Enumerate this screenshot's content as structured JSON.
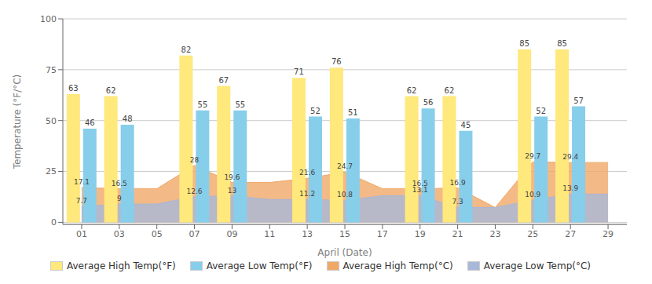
{
  "chart_data": {
    "type": "bar",
    "xlabel": "April (Date)",
    "ylabel": "Temperature (°F/°C)",
    "x": [
      1,
      3,
      5,
      7,
      9,
      11,
      13,
      15,
      17,
      19,
      21,
      23,
      25,
      27,
      29
    ],
    "series": [
      {
        "name": "Average High Temp(°F)",
        "type": "bar",
        "color": "#FFE87C",
        "data_labels": true,
        "values": [
          63,
          62,
          null,
          82,
          67,
          null,
          71,
          76,
          null,
          62,
          62,
          null,
          85,
          85,
          null
        ]
      },
      {
        "name": "Average Low Temp(°F)",
        "type": "bar",
        "color": "#87CEEB",
        "data_labels": true,
        "values": [
          46,
          48,
          null,
          55,
          55,
          null,
          52,
          51,
          null,
          56,
          45,
          null,
          52,
          57,
          null
        ]
      },
      {
        "name": "Average High Temp(°C)",
        "type": "area",
        "color": "#F0A868",
        "data_labels": true,
        "values": [
          17.1,
          16.5,
          16.5,
          28,
          19.6,
          19.6,
          21.6,
          24.7,
          16.5,
          16.5,
          16.9,
          7.3,
          29.7,
          29.4,
          29.4
        ],
        "value_labels": [
          "17.1",
          "16.5",
          null,
          "28",
          "19.6",
          null,
          "21.6",
          "24.7",
          null,
          "16.5",
          "16.9",
          null,
          "29.7",
          "29.4",
          null
        ]
      },
      {
        "name": "Average Low Temp(°C)",
        "type": "area",
        "color": "#A8B8D8",
        "data_labels": true,
        "values": [
          7.7,
          9,
          9,
          12.6,
          13,
          11.2,
          11.2,
          10.8,
          13.1,
          13.1,
          7.3,
          7.3,
          10.9,
          13.9,
          13.9
        ],
        "value_labels": [
          "7.7",
          "9",
          null,
          "12.6",
          "13",
          null,
          "11.2",
          "10.8",
          null,
          "13.1",
          "7.3",
          null,
          "10.9",
          "13.9",
          null
        ]
      }
    ],
    "xlim": [
      0,
      30
    ],
    "xticks": [
      {
        "value": 1,
        "label": "01"
      },
      {
        "value": 3,
        "label": "03"
      },
      {
        "value": 5,
        "label": "05"
      },
      {
        "value": 7,
        "label": "07"
      },
      {
        "value": 9,
        "label": "09"
      },
      11,
      13,
      15,
      17,
      19,
      21,
      23,
      25,
      27,
      29
    ],
    "ylim": [
      -1,
      100
    ],
    "yticks": [
      0,
      25,
      50,
      75,
      100
    ],
    "grid": true,
    "legend": "bottom"
  }
}
